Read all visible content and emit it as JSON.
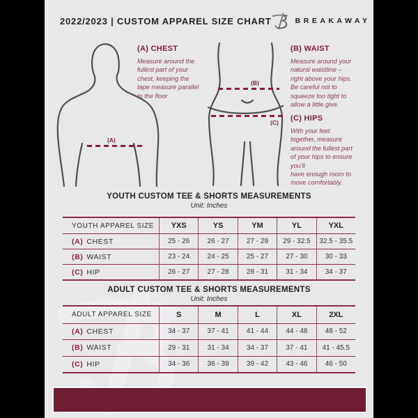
{
  "header": {
    "title": "2022/2023  |  CUSTOM APPAREL SIZE CHART",
    "brand": "BREAKAWAY"
  },
  "measurement_guide": {
    "chest": {
      "marker": "(A)",
      "heading": "(A) CHEST",
      "body": "Measure around the\nfullest part of your\nchest, keeping the\ntape measure parallel\nto the floor"
    },
    "waist": {
      "marker": "(B)",
      "heading": "(B) WAIST",
      "body": "Measure around your\nnatural waistline –\nright above your hips.\nBe careful not to\nsqueeze too tight to\nallow a little give."
    },
    "hips": {
      "marker": "(C)",
      "heading": "(C) HIPS",
      "body": "With your feet\ntogether, measure\naround the fullest part\nof your hips to ensure\nyou'll\nhave enough room to\nmove comfortably."
    }
  },
  "youth_table": {
    "title": "YOUTH CUSTOM TEE & SHORTS MEASUREMENTS",
    "unit": "Unit: Inches",
    "columns": [
      "YOUTH APPAREL SIZE",
      "YXS",
      "YS",
      "YM",
      "YL",
      "YXL"
    ],
    "rows": [
      {
        "prefix": "(A)",
        "label": "CHEST",
        "values": [
          "25 - 26",
          "26 - 27",
          "27 - 29",
          "29 - 32.5",
          "32.5 - 35.5"
        ]
      },
      {
        "prefix": "(B)",
        "label": "WAIST",
        "values": [
          "23 - 24",
          "24 - 25",
          "25 - 27",
          "27 - 30",
          "30 - 33"
        ]
      },
      {
        "prefix": "(C)",
        "label": "HIP",
        "values": [
          "26 - 27",
          "27 - 28",
          "28 - 31",
          "31 - 34",
          "34 - 37"
        ]
      }
    ]
  },
  "adult_table": {
    "title": "ADULT CUSTOM TEE & SHORTS MEASUREMENTS",
    "unit": "Unit: Inches",
    "columns": [
      "ADULT APPAREL SIZE",
      "S",
      "M",
      "L",
      "XL",
      "2XL"
    ],
    "rows": [
      {
        "prefix": "(A)",
        "label": "CHEST",
        "values": [
          "34 - 37",
          "37 - 41",
          "41 - 44",
          "44 - 48",
          "48 - 52"
        ]
      },
      {
        "prefix": "(B)",
        "label": "WAIST",
        "values": [
          "29 - 31",
          "31 - 34",
          "34 - 37",
          "37 - 41",
          "41 - 45.5"
        ]
      },
      {
        "prefix": "(C)",
        "label": "HIP",
        "values": [
          "34 - 36",
          "36 - 39",
          "39 - 42",
          "43 - 46",
          "46 - 50"
        ]
      }
    ]
  },
  "colors": {
    "maroon_accent": "#701d34",
    "table_border": "#8d2b43",
    "page_background": "#e8e8ea"
  }
}
